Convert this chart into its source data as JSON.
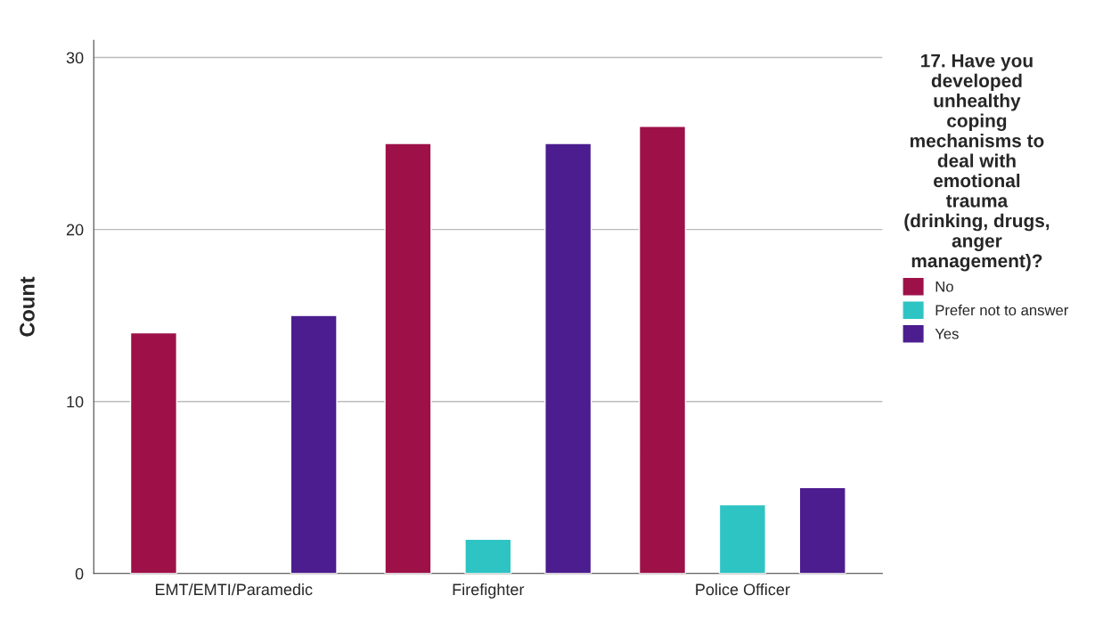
{
  "chart_data": {
    "type": "bar",
    "ylabel": "Count",
    "legend_title": "17. Have you\ndeveloped\nunhealthy\ncoping\nmechanisms to\ndeal with\nemotional\ntrauma\n(drinking, drugs,\nanger\nmanagement)?",
    "categories": [
      "EMT/EMTI/Paramedic",
      "Firefighter",
      "Police Officer"
    ],
    "series": [
      {
        "name": "No",
        "color": "#9e1048",
        "values": [
          14,
          25,
          26
        ]
      },
      {
        "name": "Prefer not to answer",
        "color": "#2ec4c4",
        "values": [
          null,
          2,
          4
        ]
      },
      {
        "name": "Yes",
        "color": "#4b1d8f",
        "values": [
          15,
          25,
          5
        ]
      }
    ],
    "ylim": [
      0,
      31
    ],
    "yticks": [
      0,
      10,
      20,
      30
    ],
    "grid": "y",
    "legend": "right"
  }
}
